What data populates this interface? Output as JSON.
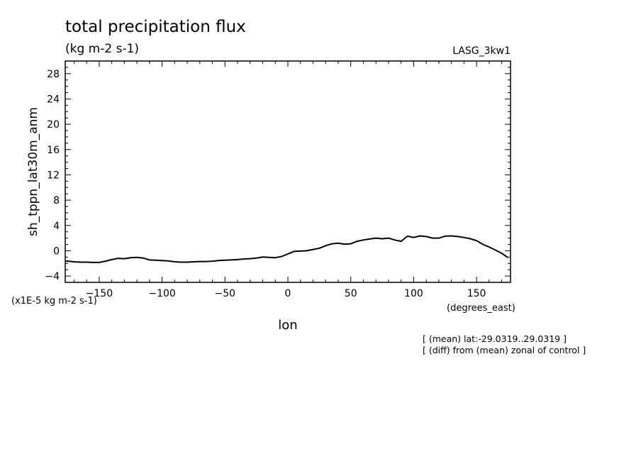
{
  "chart_data": {
    "type": "line",
    "title": "total precipitation flux",
    "subtitle": "(kg m-2 s-1)",
    "run_label": "LASG_3kw1",
    "ylabel": "sh_tppn_lat30m_anm",
    "yunit": "(x1E-5 kg m-2 s-1)",
    "xlabel": "lon",
    "xunit": "(degrees_east)",
    "notes": [
      "[ (mean) lat:-29.0319..29.0319 ]",
      "[ (diff) from (mean) zonal of control ]"
    ],
    "xlim": [
      -177,
      177
    ],
    "ylim": [
      -5,
      30
    ],
    "xticks": [
      -150,
      -100,
      -50,
      0,
      50,
      100,
      150
    ],
    "xtick_labels": [
      "-150",
      "-100",
      "-50",
      "0",
      "50",
      "100",
      "150"
    ],
    "yticks": [
      -4,
      0,
      4,
      8,
      12,
      16,
      20,
      24,
      28
    ],
    "ytick_labels": [
      "-4",
      "0",
      "4",
      "8",
      "12",
      "16",
      "20",
      "24",
      "28"
    ],
    "grid": false,
    "x": [
      -177,
      -170,
      -165,
      -160,
      -155,
      -150,
      -145,
      -140,
      -135,
      -130,
      -125,
      -120,
      -115,
      -110,
      -105,
      -100,
      -95,
      -90,
      -85,
      -80,
      -75,
      -70,
      -65,
      -60,
      -55,
      -50,
      -45,
      -40,
      -35,
      -30,
      -25,
      -20,
      -15,
      -10,
      -5,
      0,
      5,
      10,
      15,
      20,
      25,
      30,
      35,
      40,
      45,
      50,
      55,
      60,
      65,
      70,
      75,
      80,
      85,
      90,
      95,
      100,
      105,
      110,
      115,
      120,
      125,
      130,
      135,
      140,
      145,
      150,
      155,
      160,
      165,
      170,
      175
    ],
    "series": [
      {
        "values": [
          -1.6,
          -1.75,
          -1.8,
          -1.8,
          -1.85,
          -1.85,
          -1.65,
          -1.4,
          -1.2,
          -1.25,
          -1.1,
          -1.05,
          -1.15,
          -1.45,
          -1.5,
          -1.55,
          -1.6,
          -1.75,
          -1.8,
          -1.8,
          -1.75,
          -1.7,
          -1.7,
          -1.65,
          -1.55,
          -1.5,
          -1.45,
          -1.4,
          -1.3,
          -1.25,
          -1.15,
          -1.0,
          -1.05,
          -1.1,
          -0.9,
          -0.5,
          -0.1,
          -0.05,
          0.0,
          0.2,
          0.4,
          0.8,
          1.1,
          1.2,
          1.05,
          1.1,
          1.5,
          1.7,
          1.85,
          2.0,
          1.9,
          2.0,
          1.7,
          1.5,
          2.3,
          2.1,
          2.35,
          2.25,
          2.0,
          2.0,
          2.3,
          2.35,
          2.25,
          2.1,
          1.9,
          1.6,
          1.0,
          0.6,
          0.1,
          -0.4,
          -1.1
        ]
      }
    ]
  }
}
